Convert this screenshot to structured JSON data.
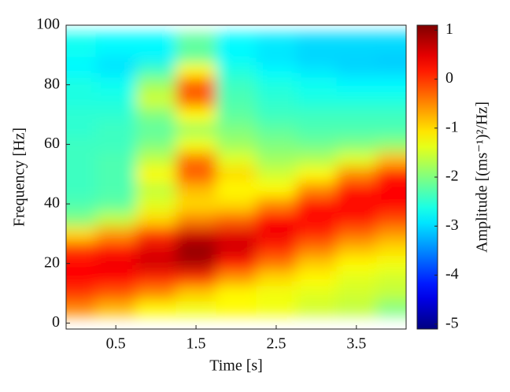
{
  "chart_data": {
    "type": "heatmap",
    "xlabel": "Time [s]",
    "ylabel": "Frequency [Hz]",
    "colorbar_label": "Amplitude [(ms⁻¹)²/Hz]",
    "colormap": "jet",
    "x": [
      0,
      0.5,
      1.0,
      1.5,
      2.0,
      2.5,
      3.0,
      3.5,
      4.0
    ],
    "y": [
      0,
      5,
      10,
      15,
      20,
      25,
      30,
      35,
      40,
      45,
      50,
      55,
      60,
      65,
      70,
      75,
      80,
      85,
      90,
      95,
      100
    ],
    "values": [
      [
        -1.5,
        -0.5,
        0.0,
        0.3,
        0.3,
        0.0,
        -1.0,
        -2.0,
        -2.3,
        -2.4,
        -2.4,
        -2.4,
        -2.4,
        -2.5,
        -2.5,
        -2.6,
        -2.6,
        -2.8,
        -2.8,
        -2.9,
        -2.7
      ],
      [
        -1.5,
        -0.8,
        -0.2,
        0.3,
        0.4,
        0.2,
        -0.6,
        -1.6,
        -2.2,
        -2.3,
        -2.3,
        -2.3,
        -2.4,
        -2.4,
        -2.5,
        -2.6,
        -2.7,
        -2.9,
        -3.0,
        -3.1,
        -2.8
      ],
      [
        -1.2,
        -1.2,
        -0.5,
        0.1,
        0.6,
        0.5,
        0.0,
        -1.0,
        -1.4,
        -1.6,
        -1.2,
        -1.6,
        -2.0,
        -2.2,
        -2.0,
        -1.5,
        -1.8,
        -2.4,
        -2.9,
        -3.0,
        -2.8
      ],
      [
        -1.0,
        -1.3,
        -0.9,
        0.0,
        0.8,
        1.0,
        0.6,
        -0.5,
        -1.0,
        -0.8,
        -0.2,
        -0.4,
        -1.3,
        -1.8,
        -1.2,
        -0.3,
        -0.2,
        -1.2,
        -2.2,
        -2.4,
        -2.2
      ],
      [
        -1.2,
        -1.2,
        -1.2,
        -0.6,
        0.2,
        0.6,
        0.5,
        -0.3,
        -1.0,
        -1.2,
        -1.0,
        -1.4,
        -1.8,
        -2.0,
        -2.2,
        -2.3,
        -2.4,
        -2.6,
        -2.8,
        -3.0,
        -2.8
      ],
      [
        -1.3,
        -1.3,
        -1.3,
        -1.0,
        -0.4,
        0.1,
        0.4,
        0.3,
        -0.5,
        -1.2,
        -1.5,
        -1.8,
        -2.0,
        -2.2,
        -2.4,
        -2.5,
        -2.6,
        -2.8,
        -3.0,
        -3.1,
        -2.9
      ],
      [
        -1.5,
        -1.5,
        -1.4,
        -1.2,
        -0.9,
        -0.4,
        0.1,
        0.3,
        0.2,
        -0.5,
        -1.2,
        -1.7,
        -2.1,
        -2.3,
        -2.4,
        -2.6,
        -2.7,
        -2.9,
        -3.1,
        -3.2,
        -3.0
      ],
      [
        -1.8,
        -1.6,
        -1.5,
        -1.4,
        -1.2,
        -0.8,
        -0.3,
        0.2,
        0.3,
        0.2,
        -0.5,
        -1.4,
        -2.0,
        -2.3,
        -2.4,
        -2.6,
        -2.8,
        -3.0,
        -3.1,
        -3.2,
        -3.0
      ],
      [
        -2.5,
        -2.0,
        -1.6,
        -1.5,
        -1.3,
        -1.0,
        -0.6,
        -0.1,
        0.3,
        0.3,
        0.2,
        -0.8,
        -1.9,
        -2.3,
        -2.4,
        -2.6,
        -2.8,
        -3.0,
        -3.2,
        -3.3,
        -3.0
      ]
    ],
    "xlim": [
      -0.12,
      4.12
    ],
    "xticks": [
      0.5,
      1.5,
      2.5,
      3.5
    ],
    "ylim": [
      -2,
      100
    ],
    "yticks": [
      0,
      20,
      40,
      60,
      80,
      100
    ],
    "clim": [
      -5.1,
      1.1
    ],
    "cticks": [
      1,
      0,
      -1,
      -2,
      -3,
      -4,
      -5
    ]
  }
}
